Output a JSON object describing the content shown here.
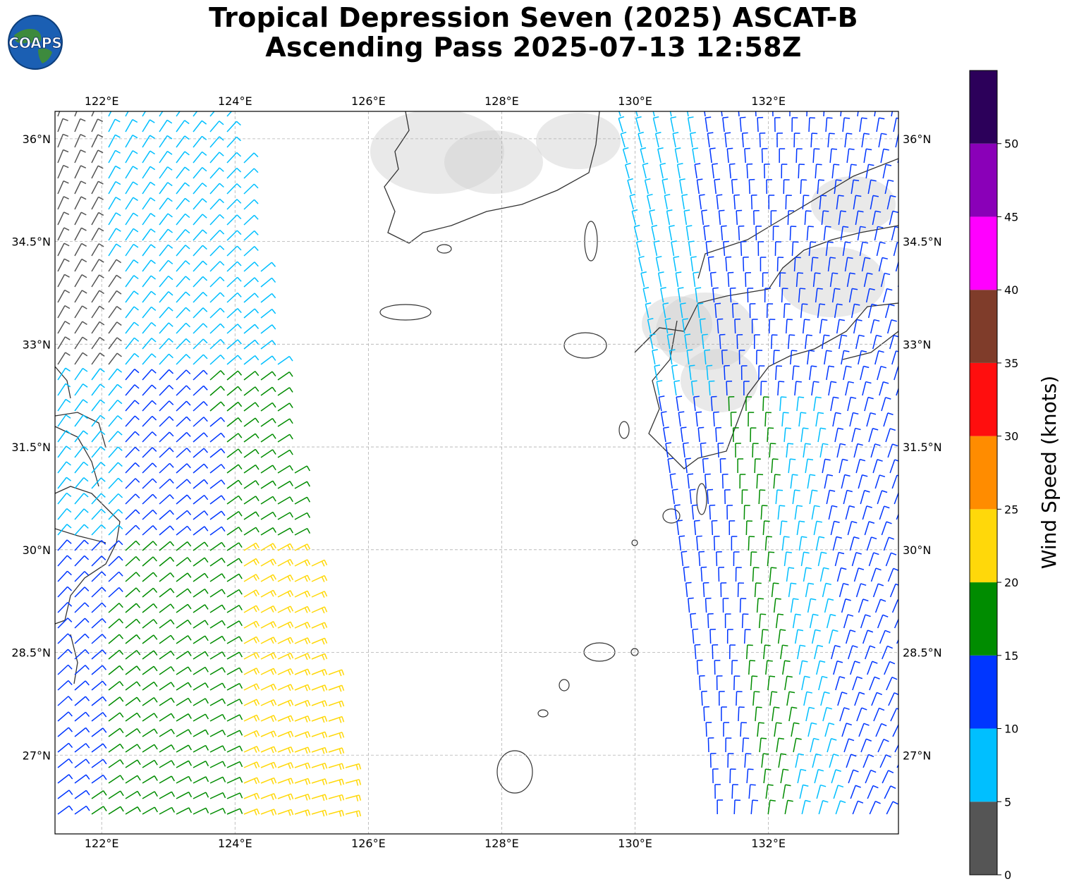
{
  "title": {
    "line1": "Tropical Depression Seven (2025) ASCAT-B",
    "line2": "Ascending Pass 2025-07-13 12:58Z"
  },
  "logo": {
    "text": "COAPS",
    "icon": "globe-icon"
  },
  "map": {
    "lon_range": [
      121.3,
      133.95
    ],
    "lat_range": [
      25.85,
      36.4
    ],
    "lon_ticks": [
      {
        "value": 122,
        "label": "122°E"
      },
      {
        "value": 124,
        "label": "124°E"
      },
      {
        "value": 126,
        "label": "126°E"
      },
      {
        "value": 128,
        "label": "128°E"
      },
      {
        "value": 130,
        "label": "130°E"
      },
      {
        "value": 132,
        "label": "132°E"
      }
    ],
    "lat_ticks": [
      {
        "value": 36,
        "label": "36°N"
      },
      {
        "value": 34.5,
        "label": "34.5°N"
      },
      {
        "value": 33,
        "label": "33°N"
      },
      {
        "value": 31.5,
        "label": "31.5°N"
      },
      {
        "value": 30,
        "label": "30°N"
      },
      {
        "value": 28.5,
        "label": "28.5°N"
      },
      {
        "value": 27,
        "label": "27°N"
      }
    ]
  },
  "colorbar": {
    "title": "Wind Speed (knots)",
    "ticks": [
      "0",
      "5",
      "10",
      "15",
      "20",
      "25",
      "30",
      "35",
      "40",
      "45",
      "50"
    ],
    "bins": [
      {
        "min": 0,
        "max": 5,
        "color": "#555555"
      },
      {
        "min": 5,
        "max": 10,
        "color": "#00bfff"
      },
      {
        "min": 10,
        "max": 15,
        "color": "#0036ff"
      },
      {
        "min": 15,
        "max": 20,
        "color": "#008c00"
      },
      {
        "min": 20,
        "max": 25,
        "color": "#ffd80a"
      },
      {
        "min": 25,
        "max": 30,
        "color": "#ff8c00"
      },
      {
        "min": 30,
        "max": 35,
        "color": "#ff0e0e"
      },
      {
        "min": 35,
        "max": 40,
        "color": "#7f3c2a"
      },
      {
        "min": 40,
        "max": 45,
        "color": "#ff00ff"
      },
      {
        "min": 45,
        "max": 50,
        "color": "#8a00b8"
      },
      {
        "min": 50,
        "max": 55,
        "color": "#2c005a"
      }
    ]
  },
  "colors": {
    "land_outline": "#333333",
    "grid": "#b0b0b0",
    "terrain": "#cfcfcf"
  }
}
